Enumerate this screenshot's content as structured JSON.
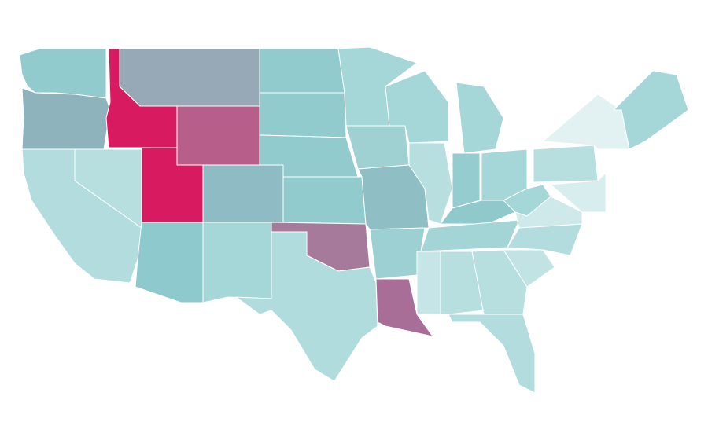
{
  "map": {
    "regions": [
      {
        "color": "#92cbcd"
      },
      {
        "color": "#8fb3bc"
      },
      {
        "color": "#b3dcde"
      },
      {
        "color": "#b8dfe0"
      },
      {
        "color": "#d81b60"
      },
      {
        "color": "#97a9b6"
      },
      {
        "color": "#b85e8a"
      },
      {
        "color": "#d81b60"
      },
      {
        "color": "#8ecacd"
      },
      {
        "color": "#8fbcc4"
      },
      {
        "color": "#a5d6d8"
      },
      {
        "color": "#92cbcd"
      },
      {
        "color": "#92cbcd"
      },
      {
        "color": "#92cbcd"
      },
      {
        "color": "#92cbcd"
      },
      {
        "color": "#a57a9b"
      },
      {
        "color": "#b1dcdd"
      },
      {
        "color": "#a5d6d8"
      },
      {
        "color": "#9fd0d2"
      },
      {
        "color": "#8fbfc5"
      },
      {
        "color": "#9dd0d2"
      },
      {
        "color": "#a86e97"
      },
      {
        "color": "#a5d6d8"
      },
      {
        "color": "#b8dfe0"
      },
      {
        "color": "#a5d6d8"
      },
      {
        "color": "#94ccd0"
      },
      {
        "color": "#a5d6d8"
      },
      {
        "color": "#90c9cc"
      },
      {
        "color": "#a3d4d6"
      },
      {
        "color": "#c6e5e6"
      },
      {
        "color": "#b8dfe0"
      },
      {
        "color": "#b8dfe0"
      },
      {
        "color": "#b3dcde"
      },
      {
        "color": "#c2e3e4"
      },
      {
        "color": "#b3dcde"
      },
      {
        "color": "#cfe8ea"
      },
      {
        "color": "#a5d6d8"
      },
      {
        "color": "#b8dfe0"
      },
      {
        "color": "#e2f1f2"
      },
      {
        "color": "#a5d6d8"
      },
      {
        "color": "#d8edee"
      }
    ]
  }
}
